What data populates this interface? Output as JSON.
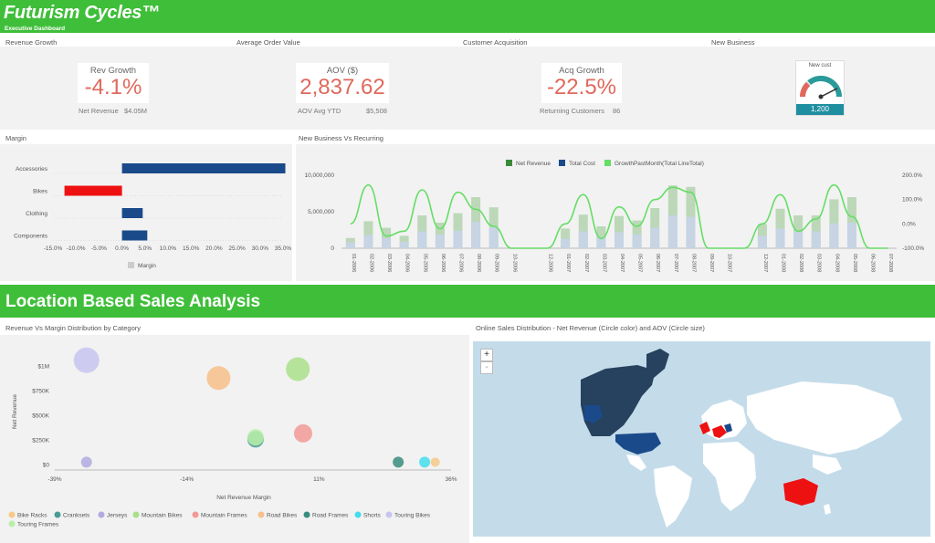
{
  "header": {
    "title": "Futurism Cycles™",
    "subtitle": "Executive Dashboard"
  },
  "sections": {
    "revenue_growth": "Revenue Growth",
    "aov": "Average Order Value",
    "customer_acquisition": "Customer Acquisition",
    "new_business": "New Business",
    "margin": "Margin",
    "new_vs_recurring": "New Business Vs Recurring",
    "location_banner": "Location Based Sales Analysis",
    "rev_vs_margin": "Revenue Vs Margin Distribution by Category",
    "online_sales": "Online Sales Distribution - Net Revenue (Circle color) and AOV (Circle size)"
  },
  "kpis": {
    "rev": {
      "label": "Rev Growth",
      "value": "-4.1%",
      "sub_label": "Net Revenue",
      "sub_value": "$4.05M"
    },
    "aov": {
      "label": "AOV ($)",
      "value": "2,837.62",
      "sub_label": "AOV Avg YTD",
      "sub_value": "$5,508"
    },
    "acq": {
      "label": "Acq Growth",
      "value": "-22.5%",
      "sub_label": "Returning Customers",
      "sub_value": "86"
    },
    "gauge": {
      "label": "New cust",
      "value": "1,200",
      "fraction": 0.85
    }
  },
  "colors": {
    "banner": "#3fbe3a",
    "kpi": "#e0685c",
    "navy": "#1a4a8a",
    "red": "#ee1111"
  },
  "map": {
    "zoom_in": "+",
    "zoom_out": "-"
  },
  "chart_data": [
    {
      "type": "bar",
      "orientation": "horizontal",
      "categories": [
        "Accessories",
        "Bikes",
        "Clothing",
        "Components"
      ],
      "values": [
        35.5,
        -12.5,
        4.5,
        5.5
      ],
      "xticks": [
        "-15.0%",
        "-10.0%",
        "-5.0%",
        "0.0%",
        "5.0%",
        "10.0%",
        "15.0%",
        "20.0%",
        "25.0%",
        "30.0%",
        "35.0%"
      ],
      "xlim": [
        -15,
        35
      ],
      "legend": [
        "Margin"
      ],
      "legend_position": "bottom"
    },
    {
      "type": "bar",
      "categories": [
        "01-2006",
        "02-2006",
        "03-2006",
        "04-2006",
        "05-2006",
        "06-2006",
        "07-2006",
        "08-2006",
        "09-2006",
        "10-2006",
        "11-2006",
        "12-2006",
        "01-2007",
        "02-2007",
        "03-2007",
        "04-2007",
        "05-2007",
        "06-2007",
        "07-2007",
        "08-2007",
        "09-2007",
        "10-2007",
        "11-2007",
        "12-2007",
        "01-2008",
        "02-2008",
        "03-2008",
        "04-2008",
        "05-2008",
        "06-2008",
        "07-2008"
      ],
      "xtick_labels": [
        "01-2006",
        "02-2006",
        "03-2006",
        "04-2006",
        "05-2006",
        "06-2006",
        "07-2006",
        "08-2006",
        "09-2006",
        "10-2006",
        "12-2006",
        "01-2007",
        "02-2007",
        "03-2007",
        "04-2007",
        "05-2007",
        "06-2007",
        "07-2007",
        "08-2007",
        "09-2007",
        "10-2007",
        "12-2007",
        "01-2008",
        "02-2008",
        "03-2008",
        "04-2008",
        "05-2008",
        "06-2008",
        "07-2008"
      ],
      "series": [
        {
          "name": "Net Revenue",
          "values": [
            1400000,
            3700000,
            2800000,
            1700000,
            4500000,
            3500000,
            4800000,
            7000000,
            5600000,
            0,
            0,
            0,
            2700000,
            4600000,
            3000000,
            4400000,
            3800000,
            5500000,
            8600000,
            8400000,
            0,
            0,
            0,
            3300000,
            5400000,
            4500000,
            4500000,
            6700000,
            7000000,
            0,
            0
          ]
        },
        {
          "name": "Total Cost",
          "values": [
            800000,
            1800000,
            1400000,
            900000,
            2300000,
            1900000,
            2400000,
            3600000,
            2900000,
            0,
            0,
            0,
            1300000,
            2300000,
            1500000,
            2200000,
            1900000,
            2800000,
            4500000,
            4300000,
            0,
            0,
            0,
            1700000,
            2700000,
            2300000,
            2300000,
            3400000,
            3500000,
            0,
            0
          ]
        },
        {
          "name": "GrowthPastMonth(Total LineTotal)",
          "values": [
            0,
            160,
            -50,
            -30,
            140,
            -20,
            130,
            60,
            -10,
            -100,
            -100,
            -100,
            0,
            120,
            -60,
            70,
            -10,
            100,
            150,
            130,
            -100,
            -100,
            -100,
            0,
            120,
            -30,
            20,
            160,
            30,
            -100,
            -100
          ]
        }
      ],
      "highlight_category": "09-2007",
      "y_ticks": [
        "0",
        "5,000,000",
        "10,000,000"
      ],
      "y2_ticks": [
        "200.0%",
        "100.0%",
        "0.0%",
        "-100.0%"
      ],
      "ylim": [
        0,
        10000000
      ],
      "y2lim": [
        -100,
        200
      ],
      "legend_position": "top"
    },
    {
      "type": "scatter",
      "xlabel": "Net Revenue Margin",
      "ylabel": "Net Revenue",
      "x_ticks": [
        "-39%",
        "-14%",
        "11%",
        "36%"
      ],
      "y_ticks": [
        "$0",
        "$250K",
        "$500K",
        "$750K",
        "$1M"
      ],
      "xlim": [
        -39,
        36
      ],
      "ylim": [
        -50000,
        1150000
      ],
      "points": [
        {
          "name": "Touring Bikes",
          "x": -33,
          "y": 1060000,
          "size": 14,
          "color": "#c7c5f0"
        },
        {
          "name": "Jerseys",
          "x": -33,
          "y": 30000,
          "size": 6,
          "color": "#b2aae0"
        },
        {
          "name": "Road Bikes",
          "x": -8,
          "y": 880000,
          "size": 13,
          "color": "#f7c08a"
        },
        {
          "name": "Mountain Bikes",
          "x": 7,
          "y": 970000,
          "size": 13,
          "color": "#a9e08a"
        },
        {
          "name": "Crankset",
          "x": -1,
          "y": 260000,
          "size": 9,
          "color": "#4a9c94"
        },
        {
          "name": "Touring Frames",
          "x": -1,
          "y": 280000,
          "size": 9,
          "color": "#b8f0a8"
        },
        {
          "name": "Mountain Frames",
          "x": 8,
          "y": 320000,
          "size": 10,
          "color": "#f29a96"
        },
        {
          "name": "Road Frames",
          "x": 26,
          "y": 30000,
          "size": 6,
          "color": "#3a8c7e"
        },
        {
          "name": "Shorts",
          "x": 31,
          "y": 30000,
          "size": 6,
          "color": "#44ddee"
        },
        {
          "name": "Bike Racks",
          "x": 33,
          "y": 30000,
          "size": 5,
          "color": "#f7c888"
        }
      ],
      "legend": [
        {
          "name": "Bike Racks",
          "color": "#f7c888"
        },
        {
          "name": "Cranksets",
          "color": "#4a9c94"
        },
        {
          "name": "Jerseys",
          "color": "#b2aae0"
        },
        {
          "name": "Mountain Bikes",
          "color": "#a9e08a"
        },
        {
          "name": "Mountain Frames",
          "color": "#f29a96"
        },
        {
          "name": "Road Bikes",
          "color": "#f7c08a"
        },
        {
          "name": "Road Frames",
          "color": "#3a8c7e"
        },
        {
          "name": "Shorts",
          "color": "#44ddee"
        },
        {
          "name": "Touring Bikes",
          "color": "#c7c5f0"
        },
        {
          "name": "Touring Frames",
          "color": "#b8f0a8"
        }
      ],
      "legend_position": "bottom"
    }
  ]
}
